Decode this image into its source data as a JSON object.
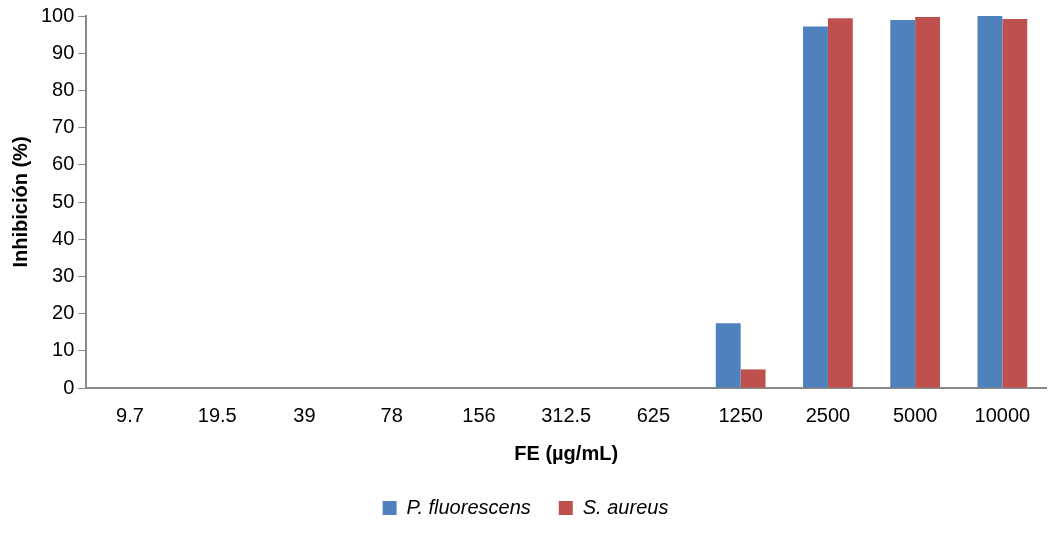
{
  "chart_data": {
    "type": "bar",
    "xlabel": "FE (µg/mL)",
    "ylabel": "Inhibición (%)",
    "categories": [
      "9.7",
      "19.5",
      "39",
      "78",
      "156",
      "312.5",
      "625",
      "1250",
      "2500",
      "5000",
      "10000"
    ],
    "series": [
      {
        "name": "P. fluorescens",
        "color": "#4f81bd",
        "values": [
          0,
          0,
          0,
          0,
          0,
          0,
          0,
          17.4,
          97.2,
          98.9,
          100
        ]
      },
      {
        "name": "S. aureus",
        "color": "#c0504d",
        "values": [
          0,
          0,
          0,
          0,
          0,
          0,
          0,
          5.0,
          99.4,
          99.7,
          99.2
        ]
      }
    ],
    "ylim": [
      0,
      100
    ],
    "yticks": [
      0,
      10,
      20,
      30,
      40,
      50,
      60,
      70,
      80,
      90,
      100
    ],
    "grid": false,
    "legend": "bottom"
  }
}
